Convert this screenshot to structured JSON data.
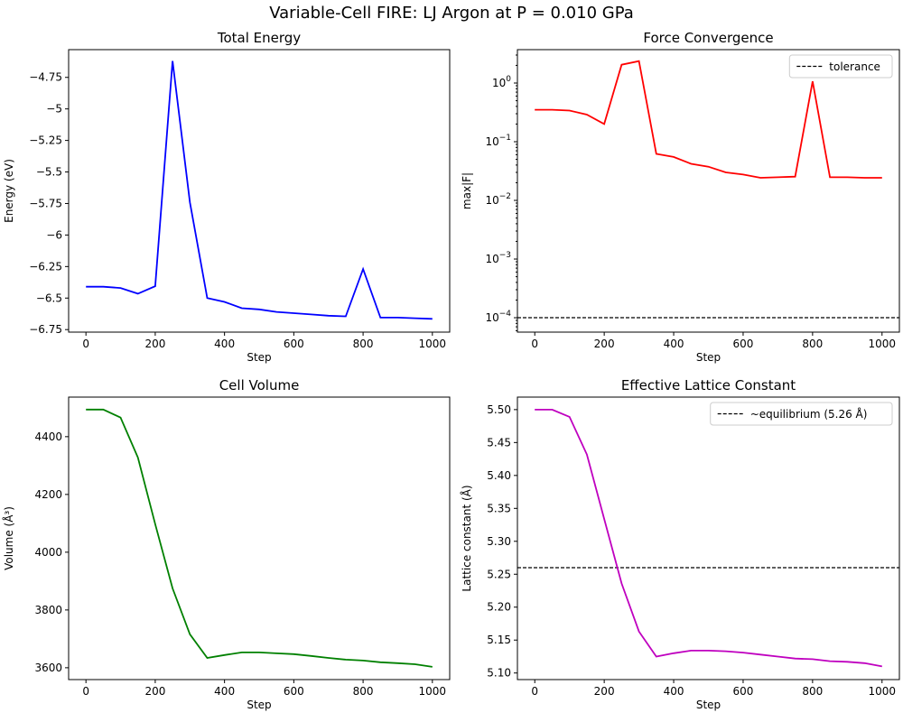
{
  "suptitle": "Variable-Cell FIRE: LJ Argon at P = 0.010 GPa",
  "chart_data": [
    {
      "type": "line",
      "title": "Total Energy",
      "xlabel": "Step",
      "ylabel": "Energy (eV)",
      "color": "#0000ff",
      "x": [
        0,
        50,
        100,
        150,
        200,
        250,
        300,
        350,
        400,
        450,
        500,
        550,
        600,
        650,
        700,
        750,
        800,
        850,
        900,
        950,
        1000
      ],
      "y": [
        -6.41,
        -6.41,
        -6.42,
        -6.465,
        -6.406,
        -4.62,
        -5.74,
        -6.5,
        -6.53,
        -6.58,
        -6.59,
        -6.61,
        -6.62,
        -6.63,
        -6.64,
        -6.645,
        -6.27,
        -6.655,
        -6.655,
        -6.66,
        -6.665
      ],
      "xlim": [
        -50,
        1050
      ],
      "ylim": [
        -6.77,
        -4.53
      ],
      "xticks": [
        0,
        200,
        400,
        600,
        800,
        1000
      ],
      "yticks": [
        -6.75,
        -6.5,
        -6.25,
        -6.0,
        -5.75,
        -5.5,
        -5.25,
        -5.0,
        -4.75
      ],
      "yscale": "linear"
    },
    {
      "type": "line",
      "title": "Force Convergence",
      "xlabel": "Step",
      "ylabel": "max|F|",
      "color": "#ff0000",
      "x": [
        0,
        50,
        100,
        150,
        200,
        250,
        300,
        350,
        400,
        450,
        500,
        550,
        600,
        650,
        700,
        750,
        800,
        850,
        900,
        950,
        1000
      ],
      "y": [
        0.35,
        0.35,
        0.34,
        0.29,
        0.2,
        2.05,
        2.37,
        0.062,
        0.055,
        0.042,
        0.0375,
        0.03,
        0.0276,
        0.0243,
        0.0248,
        0.0254,
        1.07,
        0.0248,
        0.0248,
        0.0243,
        0.0243
      ],
      "xlim": [
        -50,
        1050
      ],
      "ylim": [
        5.68e-05,
        3.71
      ],
      "yscale": "log",
      "xticks": [
        0,
        200,
        400,
        600,
        800,
        1000
      ],
      "yticks": [
        0.0001,
        0.001,
        0.01,
        0.1,
        1
      ],
      "hline": {
        "y": 0.0001,
        "label": "tolerance"
      },
      "legend": "top-right"
    },
    {
      "type": "line",
      "title": "Cell Volume",
      "xlabel": "Step",
      "ylabel": "Volume (Å³)",
      "color": "#008000",
      "x": [
        0,
        50,
        100,
        150,
        200,
        250,
        300,
        350,
        400,
        450,
        500,
        550,
        600,
        650,
        700,
        750,
        800,
        850,
        900,
        950,
        1000
      ],
      "y": [
        4494,
        4494,
        4466,
        4328,
        4097,
        3875,
        3716,
        3634,
        3644,
        3653,
        3653,
        3650,
        3647,
        3641,
        3634,
        3628,
        3625,
        3619,
        3616,
        3612,
        3603
      ],
      "xlim": [
        -50,
        1050
      ],
      "ylim": [
        3559,
        4537
      ],
      "xticks": [
        0,
        200,
        400,
        600,
        800,
        1000
      ],
      "yticks": [
        3600,
        3800,
        4000,
        4200,
        4400
      ],
      "yscale": "linear"
    },
    {
      "type": "line",
      "title": "Effective Lattice Constant",
      "xlabel": "Step",
      "ylabel": "Lattice constant (Å)",
      "color": "#bf00bf",
      "x": [
        0,
        50,
        100,
        150,
        200,
        250,
        300,
        350,
        400,
        450,
        500,
        550,
        600,
        650,
        700,
        750,
        800,
        850,
        900,
        950,
        1000
      ],
      "y": [
        5.5,
        5.5,
        5.489,
        5.432,
        5.334,
        5.236,
        5.163,
        5.125,
        5.13,
        5.134,
        5.134,
        5.133,
        5.131,
        5.128,
        5.125,
        5.122,
        5.121,
        5.118,
        5.117,
        5.115,
        5.11
      ],
      "xlim": [
        -50,
        1050
      ],
      "ylim": [
        5.09,
        5.519
      ],
      "xticks": [
        0,
        200,
        400,
        600,
        800,
        1000
      ],
      "yticks": [
        5.1,
        5.15,
        5.2,
        5.25,
        5.3,
        5.35,
        5.4,
        5.45,
        5.5
      ],
      "ytick_decimals": 2,
      "yscale": "linear",
      "hline": {
        "y": 5.26,
        "label": "~equilibrium (5.26 Å)"
      },
      "legend": "top-right"
    }
  ]
}
